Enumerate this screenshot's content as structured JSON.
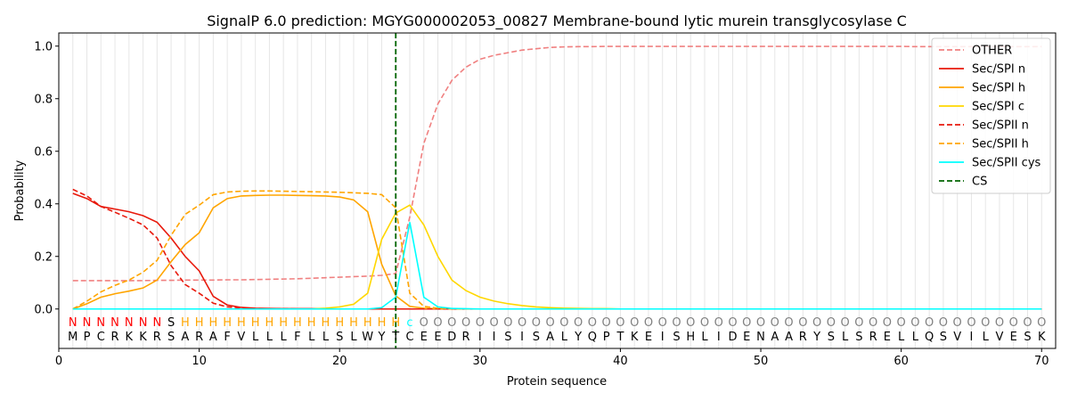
{
  "chart_data": {
    "type": "line",
    "title": "SignalP 6.0 prediction: MGYG000002053_00827 Membrane-bound lytic murein transglycosylase C",
    "xlabel": "Protein sequence",
    "ylabel": "Probability",
    "xlim": [
      0,
      71
    ],
    "ylim": [
      -0.15,
      1.05
    ],
    "x_ticks": [
      0,
      10,
      20,
      30,
      40,
      50,
      60,
      70
    ],
    "y_ticks": [
      0.0,
      0.2,
      0.4,
      0.6,
      0.8,
      1.0
    ],
    "x_tick_labels": [
      "0",
      "10",
      "20",
      "30",
      "40",
      "50",
      "60",
      "70"
    ],
    "y_tick_labels": [
      "0.0",
      "0.2",
      "0.4",
      "0.6",
      "0.8",
      "1.0"
    ],
    "grid": "vertical lines at each residue",
    "legend_position": "top-right",
    "sequence": [
      "M",
      "P",
      "C",
      "R",
      "K",
      "K",
      "R",
      "S",
      "A",
      "R",
      "A",
      "F",
      "V",
      "L",
      "L",
      "L",
      "F",
      "L",
      "L",
      "S",
      "L",
      "W",
      "Y",
      "T",
      "C",
      "E",
      "E",
      "D",
      "R",
      "I",
      "I",
      "S",
      "I",
      "S",
      "A",
      "L",
      "Y",
      "Q",
      "P",
      "T",
      "K",
      "E",
      "I",
      "S",
      "H",
      "L",
      "I",
      "D",
      "E",
      "N",
      "A",
      "A",
      "R",
      "Y",
      "S",
      "L",
      "S",
      "R",
      "E",
      "L",
      "L",
      "Q",
      "S",
      "V",
      "I",
      "L",
      "V",
      "E",
      "S",
      "K"
    ],
    "regions": [
      "N",
      "N",
      "N",
      "N",
      "N",
      "N",
      "N",
      "S",
      "H",
      "H",
      "H",
      "H",
      "H",
      "H",
      "H",
      "H",
      "H",
      "H",
      "H",
      "H",
      "H",
      "H",
      "H",
      "H",
      "c",
      "O",
      "O",
      "O",
      "O",
      "O",
      "O",
      "O",
      "O",
      "O",
      "O",
      "O",
      "O",
      "O",
      "O",
      "O",
      "O",
      "O",
      "O",
      "O",
      "O",
      "O",
      "O",
      "O",
      "O",
      "O",
      "O",
      "O",
      "O",
      "O",
      "O",
      "O",
      "O",
      "O",
      "O",
      "O",
      "O",
      "O",
      "O",
      "O",
      "O",
      "O",
      "O",
      "O",
      "O",
      "O"
    ],
    "region_colors": {
      "N": "#ff0000",
      "S": "#000000",
      "H": "#ffa500",
      "c": "#00ffff",
      "O": "#808080"
    },
    "cleavage_site": 24,
    "cleavage_label": "CS",
    "cleavage_color": "#006400",
    "series": [
      {
        "name": "OTHER",
        "color": "#f08080",
        "dash": true,
        "values": [
          0.108,
          0.108,
          0.108,
          0.108,
          0.108,
          0.108,
          0.109,
          0.109,
          0.11,
          0.11,
          0.11,
          0.111,
          0.111,
          0.112,
          0.113,
          0.114,
          0.115,
          0.117,
          0.119,
          0.121,
          0.123,
          0.125,
          0.128,
          0.135,
          0.35,
          0.63,
          0.78,
          0.87,
          0.92,
          0.95,
          0.965,
          0.975,
          0.985,
          0.99,
          0.995,
          0.997,
          0.998,
          0.998,
          0.999,
          0.999,
          0.999,
          0.999,
          0.999,
          0.999,
          0.999,
          0.999,
          0.999,
          0.999,
          0.999,
          0.999,
          0.999,
          0.999,
          0.999,
          0.999,
          0.999,
          0.999,
          0.999,
          0.999,
          0.999,
          0.999,
          0.998,
          0.998,
          0.998,
          0.998,
          0.998,
          0.998,
          0.998,
          0.998,
          0.998,
          0.998
        ]
      },
      {
        "name": "Sec/SPI n",
        "color": "#e8190c",
        "dash": false,
        "values": [
          0.44,
          0.42,
          0.39,
          0.38,
          0.37,
          0.355,
          0.33,
          0.27,
          0.2,
          0.145,
          0.048,
          0.015,
          0.006,
          0.003,
          0.002,
          0.001,
          0.001,
          0.001,
          0,
          0,
          0,
          0,
          0,
          0,
          0,
          0,
          0,
          0,
          0,
          0,
          0,
          0,
          0,
          0,
          0,
          0,
          0,
          0,
          0,
          0,
          0,
          0,
          0,
          0,
          0,
          0,
          0,
          0,
          0,
          0,
          0,
          0,
          0,
          0,
          0,
          0,
          0,
          0,
          0,
          0,
          0,
          0,
          0,
          0,
          0,
          0,
          0,
          0,
          0,
          0
        ]
      },
      {
        "name": "Sec/SPI h",
        "color": "#ffa500",
        "dash": false,
        "values": [
          0,
          0.02,
          0.045,
          0.058,
          0.068,
          0.08,
          0.11,
          0.18,
          0.245,
          0.29,
          0.385,
          0.42,
          0.43,
          0.432,
          0.433,
          0.433,
          0.432,
          0.431,
          0.43,
          0.426,
          0.415,
          0.37,
          0.17,
          0.05,
          0.01,
          0.003,
          0.001,
          0,
          0,
          0,
          0,
          0,
          0,
          0,
          0,
          0,
          0,
          0,
          0,
          0,
          0,
          0,
          0,
          0,
          0,
          0,
          0,
          0,
          0,
          0,
          0,
          0,
          0,
          0,
          0,
          0,
          0,
          0,
          0,
          0,
          0,
          0,
          0,
          0,
          0,
          0,
          0,
          0,
          0,
          0
        ]
      },
      {
        "name": "Sec/SPI c",
        "color": "#ffd700",
        "dash": false,
        "values": [
          0,
          0,
          0,
          0,
          0,
          0,
          0,
          0,
          0,
          0,
          0,
          0,
          0,
          0,
          0,
          0,
          0,
          0,
          0.003,
          0.008,
          0.018,
          0.06,
          0.265,
          0.365,
          0.395,
          0.32,
          0.2,
          0.11,
          0.07,
          0.045,
          0.03,
          0.02,
          0.013,
          0.008,
          0.005,
          0.003,
          0.002,
          0.001,
          0.001,
          0,
          0,
          0,
          0,
          0,
          0,
          0,
          0,
          0,
          0,
          0,
          0,
          0,
          0,
          0,
          0,
          0,
          0,
          0,
          0,
          0,
          0,
          0,
          0,
          0,
          0,
          0,
          0,
          0,
          0,
          0
        ]
      },
      {
        "name": "Sec/SPII n",
        "color": "#e8190c",
        "dash": true,
        "values": [
          0.455,
          0.43,
          0.39,
          0.368,
          0.345,
          0.32,
          0.27,
          0.165,
          0.093,
          0.06,
          0.022,
          0.008,
          0.004,
          0.002,
          0.001,
          0.001,
          0,
          0,
          0,
          0,
          0,
          0,
          0,
          0,
          0,
          0,
          0,
          0,
          0,
          0,
          0,
          0,
          0,
          0,
          0,
          0,
          0,
          0,
          0,
          0,
          0,
          0,
          0,
          0,
          0,
          0,
          0,
          0,
          0,
          0,
          0,
          0,
          0,
          0,
          0,
          0,
          0,
          0,
          0,
          0,
          0,
          0,
          0,
          0,
          0,
          0,
          0,
          0,
          0,
          0
        ]
      },
      {
        "name": "Sec/SPII h",
        "color": "#ffa500",
        "dash": true,
        "values": [
          0,
          0.03,
          0.065,
          0.09,
          0.11,
          0.14,
          0.185,
          0.28,
          0.36,
          0.395,
          0.435,
          0.445,
          0.448,
          0.449,
          0.449,
          0.448,
          0.447,
          0.446,
          0.445,
          0.444,
          0.442,
          0.44,
          0.435,
          0.385,
          0.06,
          0.01,
          0.003,
          0.001,
          0,
          0,
          0,
          0,
          0,
          0,
          0,
          0,
          0,
          0,
          0,
          0,
          0,
          0,
          0,
          0,
          0,
          0,
          0,
          0,
          0,
          0,
          0,
          0,
          0,
          0,
          0,
          0,
          0,
          0,
          0,
          0,
          0,
          0,
          0,
          0,
          0,
          0,
          0,
          0,
          0,
          0
        ]
      },
      {
        "name": "Sec/SPII cys",
        "color": "#00ffff",
        "dash": false,
        "values": [
          0,
          0,
          0,
          0,
          0,
          0,
          0,
          0,
          0,
          0,
          0,
          0,
          0,
          0,
          0,
          0,
          0,
          0,
          0,
          0,
          0,
          0,
          0.005,
          0.045,
          0.33,
          0.045,
          0.008,
          0.002,
          0.001,
          0,
          0,
          0,
          0,
          0,
          0,
          0,
          0,
          0,
          0,
          0,
          0,
          0,
          0,
          0,
          0,
          0,
          0,
          0,
          0,
          0,
          0,
          0,
          0,
          0,
          0,
          0,
          0,
          0,
          0,
          0,
          0,
          0,
          0,
          0,
          0,
          0,
          0,
          0,
          0,
          0
        ]
      }
    ]
  }
}
